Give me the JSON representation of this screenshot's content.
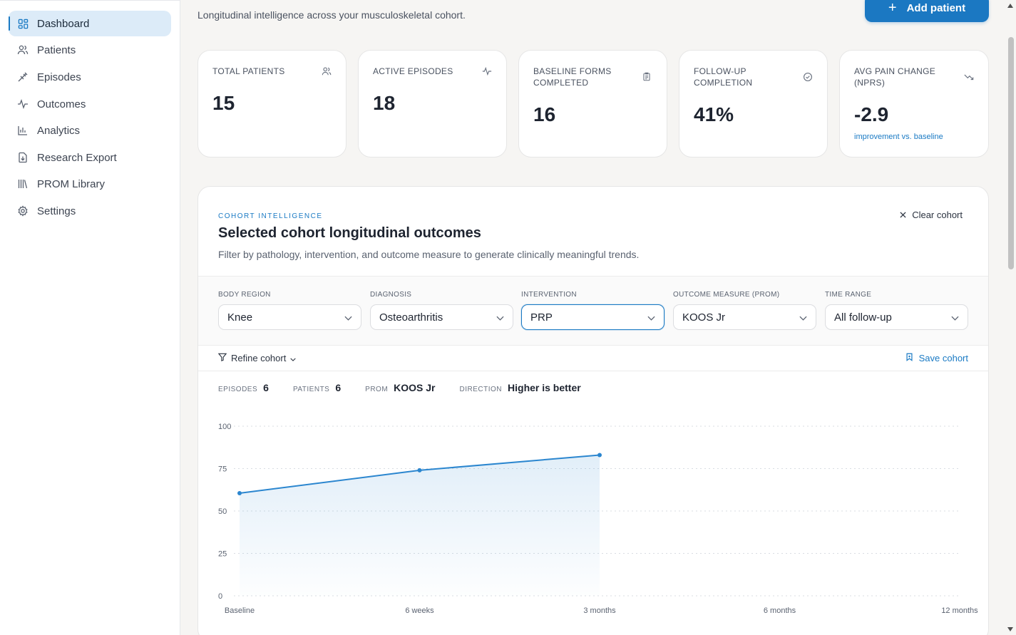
{
  "sidebar": {
    "items": [
      {
        "label": "Dashboard",
        "icon": "dashboard-grid-icon",
        "active": true
      },
      {
        "label": "Patients",
        "icon": "users-icon"
      },
      {
        "label": "Episodes",
        "icon": "syringe-icon"
      },
      {
        "label": "Outcomes",
        "icon": "activity-icon"
      },
      {
        "label": "Analytics",
        "icon": "bar-chart-icon"
      },
      {
        "label": "Research Export",
        "icon": "file-download-icon"
      },
      {
        "label": "PROM Library",
        "icon": "library-icon"
      },
      {
        "label": "Settings",
        "icon": "gear-icon"
      }
    ]
  },
  "header": {
    "subtitle": "Longitudinal intelligence across your musculoskeletal cohort.",
    "add_patient_label": "Add patient"
  },
  "stats": [
    {
      "label": "TOTAL PATIENTS",
      "value": "15",
      "icon": "users-icon"
    },
    {
      "label": "ACTIVE EPISODES",
      "value": "18",
      "icon": "activity-icon"
    },
    {
      "label": "BASELINE FORMS COMPLETED",
      "value": "16",
      "icon": "clipboard-icon"
    },
    {
      "label": "FOLLOW-UP COMPLETION",
      "value": "41%",
      "icon": "check-circle-icon"
    },
    {
      "label": "AVG PAIN CHANGE (NPRS)",
      "value": "-2.9",
      "note": "improvement vs. baseline",
      "icon": "trending-down-icon"
    }
  ],
  "cohort": {
    "eyebrow": "COHORT INTELLIGENCE",
    "title": "Selected cohort longitudinal outcomes",
    "description": "Filter by pathology, intervention, and outcome measure to generate clinically meaningful trends.",
    "clear_label": "Clear cohort",
    "refine_label": "Refine cohort",
    "save_label": "Save cohort",
    "filters": [
      {
        "label": "BODY REGION",
        "value": "Knee"
      },
      {
        "label": "DIAGNOSIS",
        "value": "Osteoarthritis"
      },
      {
        "label": "INTERVENTION",
        "value": "PRP"
      },
      {
        "label": "OUTCOME MEASURE (PROM)",
        "value": "KOOS Jr"
      },
      {
        "label": "TIME RANGE",
        "value": "All follow-up"
      }
    ],
    "metrics": {
      "episodes_label": "EPISODES",
      "episodes": "6",
      "patients_label": "PATIENTS",
      "patients": "6",
      "prom_label": "PROM",
      "prom": "KOOS Jr",
      "direction_label": "DIRECTION",
      "direction": "Higher is better"
    }
  },
  "colors": {
    "accent": "#1a7ac4",
    "line": "#2b86cf"
  },
  "chart_data": {
    "type": "area",
    "categories": [
      "Baseline",
      "6 weeks",
      "3 months",
      "6 months",
      "12 months"
    ],
    "series": [
      {
        "values": [
          60.5,
          74,
          83,
          null,
          null
        ]
      }
    ],
    "yticks": [
      0,
      25,
      50,
      75,
      100
    ],
    "ylim": [
      0,
      100
    ],
    "grid": true
  }
}
